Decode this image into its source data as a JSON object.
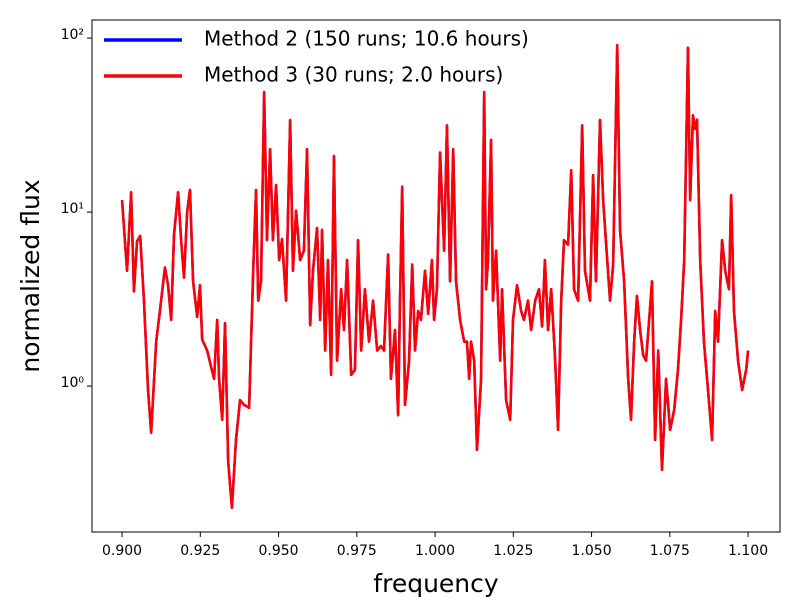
{
  "chart_data": {
    "type": "line",
    "xlabel": "frequency",
    "ylabel": "normalized flux",
    "xlim": [
      0.8904,
      1.1102
    ],
    "ylim": [
      0.145,
      127
    ],
    "yscale": "log",
    "xticks": [
      {
        "value": 0.9,
        "label": "0.900"
      },
      0.925,
      {
        "value": 0.95,
        "label": "0.950"
      },
      0.975,
      {
        "value": 1.0,
        "label": "1.000"
      },
      1.025,
      {
        "value": 1.05,
        "label": "1.050"
      },
      1.075,
      {
        "value": 1.1,
        "label": "1.100"
      }
    ],
    "yticks": [
      {
        "value": 1,
        "label": "10⁰"
      },
      {
        "value": 10,
        "label": "10¹"
      },
      {
        "value": 100,
        "label": "10²"
      }
    ],
    "legend": "upper left",
    "x": [
      0.9,
      0.9016,
      0.9029,
      0.9038,
      0.9048,
      0.9058,
      0.907,
      0.9083,
      0.9093,
      0.9109,
      0.9121,
      0.9137,
      0.9147,
      0.9157,
      0.9166,
      0.9179,
      0.9189,
      0.9198,
      0.9208,
      0.9217,
      0.9227,
      0.924,
      0.9249,
      0.9256,
      0.9272,
      0.9284,
      0.9294,
      0.9304,
      0.931,
      0.932,
      0.9329,
      0.9339,
      0.9351,
      0.9364,
      0.9377,
      0.939,
      0.9406,
      0.9419,
      0.9428,
      0.9435,
      0.9444,
      0.9454,
      0.9463,
      0.9473,
      0.9482,
      0.9492,
      0.9502,
      0.9511,
      0.9524,
      0.9537,
      0.9546,
      0.9556,
      0.9569,
      0.9581,
      0.9591,
      0.9601,
      0.961,
      0.9623,
      0.9633,
      0.9639,
      0.9649,
      0.9658,
      0.9668,
      0.9677,
      0.9687,
      0.97,
      0.9709,
      0.9719,
      0.9732,
      0.9744,
      0.9754,
      0.9764,
      0.9776,
      0.9789,
      0.9802,
      0.9815,
      0.9827,
      0.9837,
      0.985,
      0.9859,
      0.9872,
      0.9882,
      0.9888,
      0.9895,
      0.9904,
      0.9917,
      0.9927,
      0.9936,
      0.9946,
      0.9955,
      0.9968,
      0.9978,
      0.999,
      0.9997,
      1.0006,
      1.0016,
      1.0029,
      1.0038,
      1.0048,
      1.0058,
      1.0067,
      1.008,
      1.0093,
      1.0102,
      1.0109,
      1.0115,
      1.0125,
      1.0134,
      1.0147,
      1.0157,
      1.0163,
      1.0169,
      1.0179,
      1.0185,
      1.0195,
      1.0208,
      1.0214,
      1.0227,
      1.024,
      1.0249,
      1.0262,
      1.0275,
      1.0284,
      1.0297,
      1.0307,
      1.032,
      1.0332,
      1.0342,
      1.0351,
      1.0361,
      1.0371,
      1.0383,
      1.0393,
      1.0403,
      1.0412,
      1.0425,
      1.0435,
      1.0444,
      1.0457,
      1.047,
      1.0479,
      1.0495,
      1.0505,
      1.0514,
      1.0527,
      1.0537,
      1.055,
      1.0559,
      1.0569,
      1.0582,
      1.0591,
      1.0604,
      1.0617,
      1.0626,
      1.0636,
      1.0645,
      1.0655,
      1.0665,
      1.0674,
      1.0684,
      1.0693,
      1.0703,
      1.0713,
      1.0725,
      1.0738,
      1.0751,
      1.0764,
      1.0776,
      1.0786,
      1.0796,
      1.0808,
      1.0815,
      1.0824,
      1.0831,
      1.0837,
      1.0847,
      1.0859,
      1.0872,
      1.0885,
      1.0895,
      1.0904,
      1.0917,
      1.0927,
      1.0939,
      1.0946,
      1.0955,
      1.0968,
      1.0981,
      1.0994,
      1.1
    ],
    "series": [
      {
        "name": "Method 2 (150 runs; 10.6 hours)",
        "color": "#0000ff",
        "values": [
          11.7,
          4.6,
          13,
          3.5,
          6.8,
          7.3,
          3.1,
          0.95,
          0.54,
          1.8,
          2.7,
          4.8,
          3.8,
          2.4,
          7.4,
          13,
          6.8,
          4.2,
          10,
          13.4,
          4,
          2.5,
          3.8,
          1.85,
          1.6,
          1.3,
          1.1,
          2.4,
          1.1,
          0.64,
          2.3,
          0.37,
          0.2,
          0.49,
          0.83,
          0.78,
          0.75,
          4.6,
          13.4,
          3.1,
          4,
          49,
          6.9,
          23,
          6.9,
          14.3,
          5.3,
          7,
          3.1,
          33.8,
          4.6,
          10.2,
          5.3,
          6,
          23,
          2.24,
          4.6,
          8.1,
          2.4,
          7.9,
          1.6,
          5.3,
          1.16,
          21,
          1.4,
          3.6,
          2.1,
          5.3,
          1.16,
          1.24,
          6.9,
          1.6,
          3.6,
          1.8,
          3.1,
          1.6,
          1.7,
          1.6,
          5.7,
          1.1,
          2.1,
          0.68,
          3.1,
          14,
          0.78,
          1.4,
          5,
          1.6,
          2.7,
          2.4,
          4.6,
          2.6,
          5.3,
          2.4,
          3.6,
          22,
          6,
          31.5,
          4,
          23,
          4,
          2.4,
          1.8,
          1.8,
          1.1,
          1.8,
          1.4,
          0.43,
          1.1,
          49,
          3.6,
          5.2,
          26,
          3.1,
          6,
          1.4,
          3.6,
          0.83,
          0.64,
          2.4,
          3.8,
          2.7,
          2.4,
          3.1,
          2.1,
          3.1,
          3.6,
          2.2,
          5.3,
          2.1,
          3.6,
          1.5,
          0.56,
          3.1,
          6.9,
          6.5,
          17.4,
          3.6,
          3.1,
          31.5,
          4.6,
          3.1,
          16.3,
          4,
          33.8,
          11.7,
          5.3,
          3.1,
          5,
          91,
          7.9,
          4,
          1.1,
          0.64,
          1.8,
          3.3,
          2.1,
          1.5,
          1.4,
          2.4,
          4,
          0.49,
          1.6,
          0.33,
          1.1,
          0.56,
          0.73,
          1.24,
          2.4,
          5.3,
          88,
          11.7,
          36,
          30,
          34,
          5.3,
          1.8,
          0.95,
          0.49,
          2.7,
          1.8,
          6.9,
          4.6,
          3.6,
          12.5,
          2.7,
          1.4,
          0.95,
          1.24,
          1.6
        ]
      },
      {
        "name": "Method 3 (30 runs; 2.0 hours)",
        "color": "#ff0000",
        "values": [
          11.7,
          4.6,
          13,
          3.5,
          6.8,
          7.3,
          3.1,
          0.95,
          0.54,
          1.8,
          2.7,
          4.8,
          3.8,
          2.4,
          7.4,
          13,
          6.8,
          4.2,
          10,
          13.4,
          4,
          2.5,
          3.8,
          1.85,
          1.6,
          1.3,
          1.1,
          2.4,
          1.1,
          0.64,
          2.3,
          0.37,
          0.2,
          0.49,
          0.83,
          0.78,
          0.75,
          4.6,
          13.4,
          3.1,
          4,
          49,
          6.9,
          23,
          6.9,
          14.3,
          5.3,
          7,
          3.1,
          33.8,
          4.6,
          10.2,
          5.3,
          6,
          23,
          2.24,
          4.6,
          8.1,
          2.4,
          7.9,
          1.6,
          5.3,
          1.16,
          21,
          1.4,
          3.6,
          2.1,
          5.3,
          1.16,
          1.24,
          6.9,
          1.6,
          3.6,
          1.8,
          3.1,
          1.6,
          1.7,
          1.6,
          5.7,
          1.1,
          2.1,
          0.68,
          3.1,
          14,
          0.78,
          1.4,
          5,
          1.6,
          2.7,
          2.4,
          4.6,
          2.6,
          5.3,
          2.4,
          3.6,
          22,
          6,
          31.5,
          4,
          23,
          4,
          2.4,
          1.8,
          1.8,
          1.1,
          1.8,
          1.4,
          0.43,
          1.1,
          49,
          3.6,
          5.2,
          26,
          3.1,
          6,
          1.4,
          3.6,
          0.83,
          0.64,
          2.4,
          3.8,
          2.7,
          2.4,
          3.1,
          2.1,
          3.1,
          3.6,
          2.2,
          5.3,
          2.1,
          3.6,
          1.5,
          0.56,
          3.1,
          6.9,
          6.5,
          17.4,
          3.6,
          3.1,
          31.5,
          4.6,
          3.1,
          16.3,
          4,
          33.8,
          11.7,
          5.3,
          3.1,
          5,
          91,
          7.9,
          4,
          1.1,
          0.64,
          1.8,
          3.3,
          2.1,
          1.5,
          1.4,
          2.4,
          4,
          0.49,
          1.6,
          0.33,
          1.1,
          0.56,
          0.73,
          1.24,
          2.4,
          5.3,
          88,
          11.7,
          36,
          30,
          34,
          5.3,
          1.8,
          0.95,
          0.49,
          2.7,
          1.8,
          6.9,
          4.6,
          3.6,
          12.5,
          2.7,
          1.4,
          0.95,
          1.24,
          1.6
        ]
      }
    ]
  }
}
